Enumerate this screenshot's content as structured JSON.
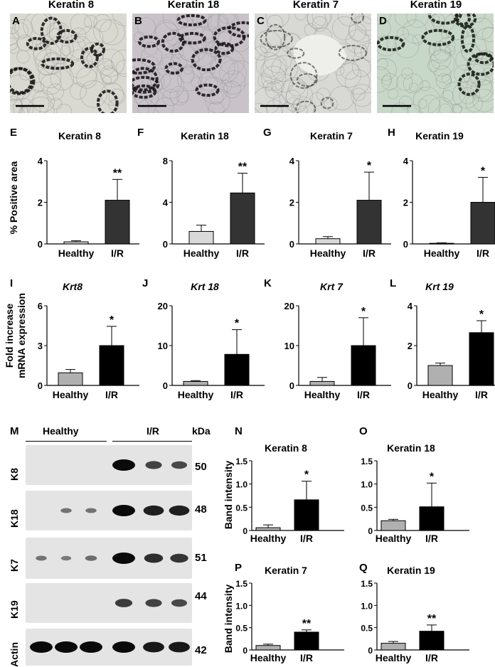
{
  "micrographs": [
    {
      "letter": "A",
      "title": "Keratin 8",
      "bg": "#d9d9d2",
      "stain": "#1a1a1a"
    },
    {
      "letter": "B",
      "title": "Keratin 18",
      "bg": "#c9c3c9",
      "stain": "#1c161c"
    },
    {
      "letter": "C",
      "title": "Keratin 7",
      "bg": "#d8d8d4",
      "stain": "#2a2a2a"
    },
    {
      "letter": "D",
      "title": "Keratin 19",
      "bg": "#c8d8c8",
      "stain": "#1a201a"
    }
  ],
  "labels": {
    "y_positive_area": "% Positive area",
    "y_mrna_line1": "Fold increase",
    "y_mrna_line2": "mRNA expression",
    "y_band": "Band intensity",
    "blot_letter": "M",
    "blot_healthy": "Healthy",
    "blot_ir": "I/R",
    "blot_kda": "kDa"
  },
  "colors": {
    "healthy_ihc": "#d9d9d9",
    "ir_ihc": "#333333",
    "healthy_mrna": "#b0b0b0",
    "ir_mrna": "#000000"
  },
  "blots": [
    {
      "label": "K8",
      "kda": "50",
      "bands": [
        0,
        0,
        0,
        1.0,
        0.6,
        0.55
      ]
    },
    {
      "label": "K18",
      "kda": "48",
      "bands": [
        0,
        0.25,
        0.25,
        1.0,
        0.85,
        0.85
      ]
    },
    {
      "label": "K7",
      "kda": "51",
      "bands": [
        0.25,
        0.2,
        0.3,
        1.0,
        0.75,
        0.7
      ]
    },
    {
      "label": "K19",
      "kda": "44",
      "bands": [
        0,
        0,
        0,
        0.65,
        0.6,
        0.55
      ]
    },
    {
      "label": "Actin",
      "kda": "42",
      "bands": [
        1.0,
        1.0,
        1.0,
        1.0,
        0.9,
        0.9
      ]
    }
  ],
  "chart_data": [
    {
      "letter": "E",
      "type": "bar",
      "title": "Keratin 8",
      "title_italic": false,
      "ylabel": "% Positive area",
      "categories": [
        "Healthy",
        "I/R"
      ],
      "values": [
        0.1,
        2.1
      ],
      "errors": [
        0.05,
        1.0
      ],
      "ylim": [
        0,
        4
      ],
      "yticks": [
        "0",
        "2",
        "4"
      ],
      "significance": "**"
    },
    {
      "letter": "F",
      "type": "bar",
      "title": "Keratin 18",
      "title_italic": false,
      "ylabel": "",
      "categories": [
        "Healthy",
        "I/R"
      ],
      "values": [
        1.2,
        4.9
      ],
      "errors": [
        0.6,
        1.9
      ],
      "ylim": [
        0,
        8
      ],
      "yticks": [
        "0",
        "4",
        "8"
      ],
      "significance": "**"
    },
    {
      "letter": "G",
      "type": "bar",
      "title": "Keratin 7",
      "title_italic": false,
      "ylabel": "",
      "categories": [
        "Healthy",
        "I/R"
      ],
      "values": [
        0.25,
        2.1
      ],
      "errors": [
        0.1,
        1.35
      ],
      "ylim": [
        0,
        4
      ],
      "yticks": [
        "0",
        "2",
        "4"
      ],
      "significance": "*"
    },
    {
      "letter": "H",
      "type": "bar",
      "title": "Keratin 19",
      "title_italic": false,
      "ylabel": "",
      "categories": [
        "Healthy",
        "I/R"
      ],
      "values": [
        0.03,
        2.0
      ],
      "errors": [
        0.02,
        1.2
      ],
      "ylim": [
        0,
        4
      ],
      "yticks": [
        "0",
        "2",
        "4"
      ],
      "significance": "*"
    },
    {
      "letter": "I",
      "type": "bar",
      "title": "Krt8",
      "title_italic": true,
      "ylabel": "Fold increase mRNA expression",
      "categories": [
        "Healthy",
        "I/R"
      ],
      "values": [
        0.95,
        3.0
      ],
      "errors": [
        0.25,
        1.45
      ],
      "ylim": [
        0,
        6
      ],
      "yticks": [
        "0",
        "3",
        "6"
      ],
      "significance": "*"
    },
    {
      "letter": "J",
      "type": "bar",
      "title": "Krt 18",
      "title_italic": true,
      "ylabel": "",
      "categories": [
        "Healthy",
        "I/R"
      ],
      "values": [
        1.0,
        7.8
      ],
      "errors": [
        0.2,
        6.2
      ],
      "ylim": [
        0,
        20
      ],
      "yticks": [
        "0",
        "10",
        "20"
      ],
      "significance": "*"
    },
    {
      "letter": "K",
      "type": "bar",
      "title": "Krt 7",
      "title_italic": true,
      "ylabel": "",
      "categories": [
        "Healthy",
        "I/R"
      ],
      "values": [
        1.0,
        10.0
      ],
      "errors": [
        1.0,
        7.0
      ],
      "ylim": [
        0,
        20
      ],
      "yticks": [
        "0",
        "10",
        "20"
      ],
      "significance": "*"
    },
    {
      "letter": "L",
      "type": "bar",
      "title": "Krt 19",
      "title_italic": true,
      "ylabel": "",
      "categories": [
        "Healthy",
        "I/R"
      ],
      "values": [
        1.0,
        2.65
      ],
      "errors": [
        0.12,
        0.6
      ],
      "ylim": [
        0,
        4
      ],
      "yticks": [
        "0",
        "2",
        "4"
      ],
      "significance": "*"
    },
    {
      "letter": "N",
      "type": "bar",
      "title": "Keratin 8",
      "title_italic": false,
      "ylabel": "Band intensity",
      "categories": [
        "Healthy",
        "I/R"
      ],
      "values": [
        0.06,
        0.66
      ],
      "errors": [
        0.06,
        0.4
      ],
      "ylim": [
        0,
        1.5
      ],
      "yticks": [
        "0",
        "0.5",
        "1.0",
        "1.5"
      ],
      "significance": "*"
    },
    {
      "letter": "O",
      "type": "bar",
      "title": "Keratin 18",
      "title_italic": false,
      "ylabel": "",
      "categories": [
        "Healthy",
        "I/R"
      ],
      "values": [
        0.21,
        0.51
      ],
      "errors": [
        0.03,
        0.51
      ],
      "ylim": [
        0,
        1.5
      ],
      "yticks": [
        "0",
        "0.5",
        "1.0",
        "1.5"
      ],
      "significance": "*"
    },
    {
      "letter": "P",
      "type": "bar",
      "title": "Keratin 7",
      "title_italic": false,
      "ylabel": "Band intensity",
      "categories": [
        "Healthy",
        "I/R"
      ],
      "values": [
        0.1,
        0.4
      ],
      "errors": [
        0.03,
        0.05
      ],
      "ylim": [
        0,
        1.5
      ],
      "yticks": [
        "0",
        "0.5",
        "1.0",
        "1.5"
      ],
      "significance": "**"
    },
    {
      "letter": "Q",
      "type": "bar",
      "title": "Keratin 19",
      "title_italic": false,
      "ylabel": "",
      "categories": [
        "Healthy",
        "I/R"
      ],
      "values": [
        0.15,
        0.42
      ],
      "errors": [
        0.04,
        0.14
      ],
      "ylim": [
        0,
        1.5
      ],
      "yticks": [
        "0",
        "0.5",
        "1.0",
        "1.5"
      ],
      "significance": "**"
    }
  ]
}
